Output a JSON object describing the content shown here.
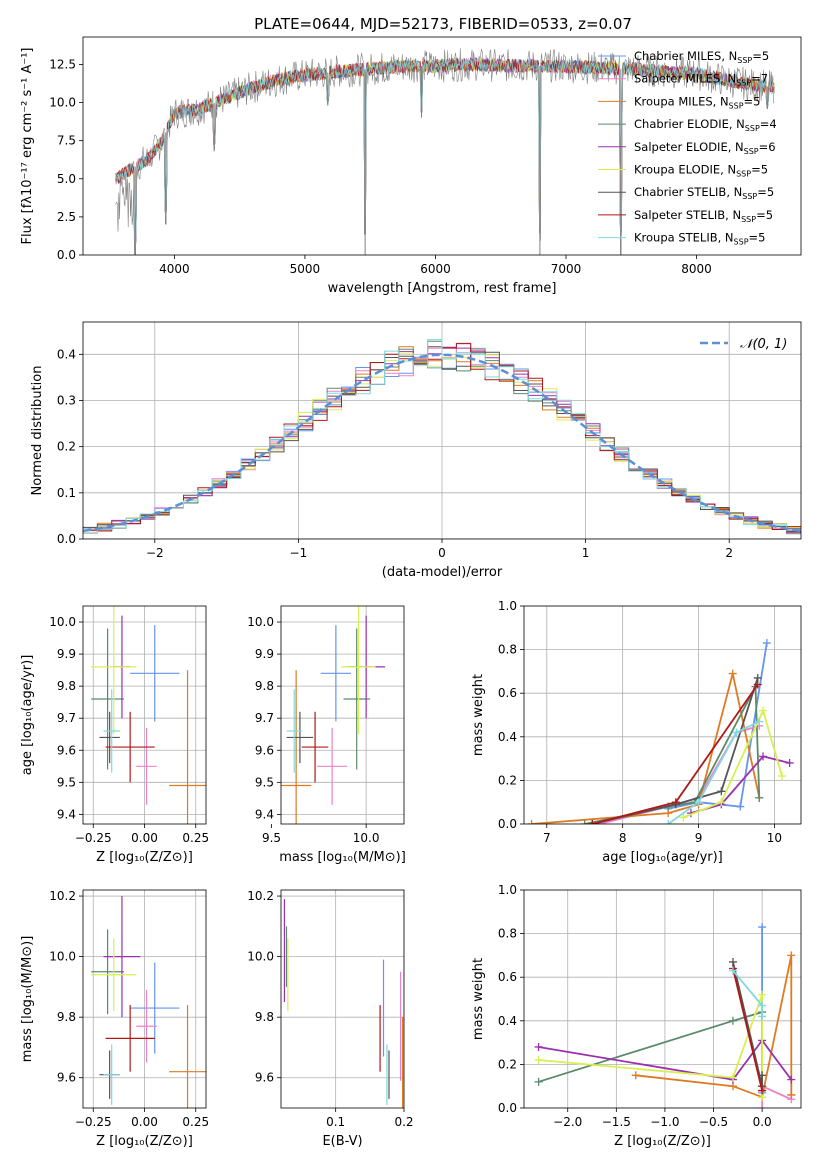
{
  "figure": {
    "title": "PLATE=0644, MJD=52173, FIBERID=0533, z=0.07"
  },
  "colors": {
    "chabrier_miles": "#6495ed",
    "salpeter_miles": "#ee82c8",
    "kroupa_miles": "#e07a20",
    "chabrier_elodie": "#5b8a6a",
    "salpeter_elodie": "#9b30b0",
    "kroupa_elodie": "#d8ef50",
    "chabrier_stelib": "#555555",
    "salpeter_stelib": "#b01818",
    "kroupa_stelib": "#80d8e0",
    "data_spectrum": "#808080",
    "normal_curve": "#5b8fd6"
  },
  "chart_data": [
    {
      "id": "spectrum",
      "type": "line",
      "xlabel": "wavelength [Angstrom, rest frame]",
      "ylabel": "Flux [fλ10⁻¹⁷ erg cm⁻² s⁻¹ A⁻¹]",
      "xlim": [
        3300,
        8800
      ],
      "ylim": [
        0,
        14.3
      ],
      "xticks": [
        "4000",
        "5000",
        "6000",
        "7000",
        "8000"
      ],
      "yticks": [
        "0.0",
        "2.5",
        "5.0",
        "7.5",
        "10.0",
        "12.5"
      ],
      "grid": false,
      "legend_position": "right",
      "legend": [
        {
          "key": "chabrier_miles",
          "label": "Chabrier MILES, N",
          "sub": "SSP",
          "suffix": "=5"
        },
        {
          "key": "salpeter_miles",
          "label": "Salpeter MILES, N",
          "sub": "SSP",
          "suffix": "=7"
        },
        {
          "key": "kroupa_miles",
          "label": "Kroupa MILES, N",
          "sub": "SSP",
          "suffix": "=5"
        },
        {
          "key": "chabrier_elodie",
          "label": "Chabrier ELODIE, N",
          "sub": "SSP",
          "suffix": "=4"
        },
        {
          "key": "salpeter_elodie",
          "label": "Salpeter ELODIE, N",
          "sub": "SSP",
          "suffix": "=6"
        },
        {
          "key": "kroupa_elodie",
          "label": "Kroupa ELODIE, N",
          "sub": "SSP",
          "suffix": "=5"
        },
        {
          "key": "chabrier_stelib",
          "label": "Chabrier STELIB, N",
          "sub": "SSP",
          "suffix": "=5"
        },
        {
          "key": "salpeter_stelib",
          "label": "Salpeter STELIB, N",
          "sub": "SSP",
          "suffix": "=5"
        },
        {
          "key": "kroupa_stelib",
          "label": "Kroupa STELIB, N",
          "sub": "SSP",
          "suffix": "=5"
        }
      ],
      "continuum": {
        "x": [
          3550,
          3700,
          3800,
          3900,
          4000,
          4200,
          4400,
          4600,
          4800,
          5000,
          5200,
          5500,
          5800,
          6000,
          6300,
          6600,
          6900,
          7200,
          7500,
          7800,
          8000,
          8200,
          8400,
          8600
        ],
        "y": [
          5.0,
          5.8,
          6.3,
          7.4,
          9.3,
          9.6,
          10.3,
          11.0,
          11.5,
          11.8,
          12.0,
          12.2,
          12.4,
          12.4,
          12.5,
          12.4,
          12.4,
          12.3,
          12.2,
          12.0,
          11.9,
          11.5,
          11.2,
          11.0
        ]
      },
      "absorption_lines": [
        {
          "x": 3700,
          "y": 0
        },
        {
          "x": 3934,
          "y": 2.0
        },
        {
          "x": 4305,
          "y": 6.8
        },
        {
          "x": 5175,
          "y": 9.8
        },
        {
          "x": 5461,
          "y": 0
        },
        {
          "x": 5893,
          "y": 9.0
        },
        {
          "x": 6800,
          "y": 0
        },
        {
          "x": 7420,
          "y": 0
        },
        {
          "x": 8542,
          "y": 9.6
        }
      ]
    },
    {
      "id": "residual-histogram",
      "type": "bar",
      "xlabel": "(data-model)/error",
      "ylabel": "Normed distribution",
      "xlim": [
        -2.5,
        2.5
      ],
      "ylim": [
        0,
        0.47
      ],
      "xticks": [
        "−2",
        "−1",
        "0",
        "1",
        "2"
      ],
      "yticks": [
        "0.0",
        "0.1",
        "0.2",
        "0.3",
        "0.4"
      ],
      "grid": true,
      "legend_position": "upper right",
      "legend": [
        {
          "key": "normal_curve",
          "label": "𝒩(0, 1)"
        }
      ],
      "bin_width": 0.1,
      "series_keys": [
        "chabrier_miles",
        "salpeter_miles",
        "kroupa_miles",
        "chabrier_elodie",
        "salpeter_elodie",
        "kroupa_elodie",
        "chabrier_stelib",
        "salpeter_stelib",
        "kroupa_stelib"
      ],
      "peak_values": [
        0.44,
        0.41,
        0.43,
        0.42,
        0.44,
        0.41,
        0.4,
        0.42,
        0.45
      ]
    },
    {
      "id": "age-vs-z",
      "type": "scatter",
      "xlabel": "Z [log₁₀(Z/Z⊙)]",
      "ylabel": "age  [log₁₀(age/yr)]",
      "xlim": [
        -0.3,
        0.3
      ],
      "ylim": [
        9.37,
        10.05
      ],
      "xticks": [
        "−0.25",
        "0.00",
        "0.25"
      ],
      "yticks": [
        "9.4",
        "9.5",
        "9.6",
        "9.7",
        "9.8",
        "9.9",
        "10.0"
      ],
      "grid": true,
      "points": [
        {
          "key": "chabrier_miles",
          "x": 0.05,
          "y": 9.84,
          "xerr": 0.12,
          "yerr": 0.15
        },
        {
          "key": "salpeter_miles",
          "x": 0.01,
          "y": 9.55,
          "xerr": 0.05,
          "yerr": 0.12
        },
        {
          "key": "kroupa_miles",
          "x": 0.21,
          "y": 9.49,
          "xerr": 0.09,
          "yerr": 0.36
        },
        {
          "key": "chabrier_elodie",
          "x": -0.18,
          "y": 9.76,
          "xerr": 0.08,
          "yerr": 0.22
        },
        {
          "key": "salpeter_elodie",
          "x": -0.11,
          "y": 9.86,
          "xerr": 0.04,
          "yerr": 0.16
        },
        {
          "key": "kroupa_elodie",
          "x": -0.15,
          "y": 9.86,
          "xerr": 0.11,
          "yerr": 0.21
        },
        {
          "key": "chabrier_stelib",
          "x": -0.17,
          "y": 9.64,
          "xerr": 0.05,
          "yerr": 0.08
        },
        {
          "key": "salpeter_stelib",
          "x": -0.07,
          "y": 9.61,
          "xerr": 0.12,
          "yerr": 0.11
        },
        {
          "key": "kroupa_stelib",
          "x": -0.16,
          "y": 9.66,
          "xerr": 0.04,
          "yerr": 0.13
        }
      ]
    },
    {
      "id": "age-vs-mass",
      "type": "scatter",
      "xlabel": "mass [log₁₀(M/M⊙)]",
      "ylabel": "",
      "xlim": [
        9.55,
        10.2
      ],
      "ylim": [
        9.37,
        10.05
      ],
      "xticks": [
        "9.5",
        "10.0"
      ],
      "yticks": [
        "9.4",
        "9.5",
        "9.6",
        "9.7",
        "9.8",
        "9.9",
        "10.0"
      ],
      "grid": true,
      "points": [
        {
          "key": "chabrier_miles",
          "x": 9.84,
          "y": 9.84,
          "xerr": 0.08,
          "yerr": 0.15
        },
        {
          "key": "salpeter_miles",
          "x": 9.82,
          "y": 9.55,
          "xerr": 0.08,
          "yerr": 0.12
        },
        {
          "key": "kroupa_miles",
          "x": 9.63,
          "y": 9.49,
          "xerr": 0.08,
          "yerr": 0.36
        },
        {
          "key": "chabrier_elodie",
          "x": 9.95,
          "y": 9.76,
          "xerr": 0.07,
          "yerr": 0.22
        },
        {
          "key": "salpeter_elodie",
          "x": 10.0,
          "y": 9.86,
          "xerr": 0.1,
          "yerr": 0.16
        },
        {
          "key": "kroupa_elodie",
          "x": 9.96,
          "y": 9.86,
          "xerr": 0.09,
          "yerr": 0.21
        },
        {
          "key": "chabrier_stelib",
          "x": 9.65,
          "y": 9.64,
          "xerr": 0.07,
          "yerr": 0.08
        },
        {
          "key": "salpeter_stelib",
          "x": 9.73,
          "y": 9.61,
          "xerr": 0.07,
          "yerr": 0.11
        },
        {
          "key": "kroupa_stelib",
          "x": 9.62,
          "y": 9.66,
          "xerr": 0.04,
          "yerr": 0.13
        }
      ]
    },
    {
      "id": "weight-vs-age",
      "type": "line",
      "xlabel": "age  [log₁₀(age/yr)]",
      "ylabel": "mass weight",
      "xlim": [
        6.7,
        10.35
      ],
      "ylim": [
        0,
        1.0
      ],
      "xticks": [
        "7",
        "8",
        "9",
        "10"
      ],
      "yticks": [
        "0.0",
        "0.2",
        "0.4",
        "0.6",
        "0.8",
        "1.0"
      ],
      "grid": true,
      "series": [
        {
          "key": "chabrier_miles",
          "x": [
            8.6,
            9.0,
            9.55,
            9.9
          ],
          "y": [
            0.07,
            0.1,
            0.08,
            0.83
          ]
        },
        {
          "key": "salpeter_miles",
          "x": [
            7.7,
            8.6,
            9.0,
            9.5,
            9.8
          ],
          "y": [
            0.0,
            0.08,
            0.12,
            0.42,
            0.45
          ]
        },
        {
          "key": "kroupa_miles",
          "x": [
            6.8,
            8.6,
            9.0,
            9.45,
            9.8
          ],
          "y": [
            0.0,
            0.05,
            0.09,
            0.69,
            0.12
          ]
        },
        {
          "key": "chabrier_elodie",
          "x": [
            7.5,
            8.6,
            8.95,
            9.75,
            9.8
          ],
          "y": [
            0.0,
            0.08,
            0.1,
            0.63,
            0.12
          ]
        },
        {
          "key": "salpeter_elodie",
          "x": [
            8.9,
            9.3,
            9.85,
            10.2
          ],
          "y": [
            0.05,
            0.09,
            0.31,
            0.28
          ]
        },
        {
          "key": "kroupa_elodie",
          "x": [
            8.8,
            9.3,
            9.85,
            10.1
          ],
          "y": [
            0.03,
            0.1,
            0.52,
            0.22
          ]
        },
        {
          "key": "chabrier_stelib",
          "x": [
            7.6,
            8.7,
            9.3,
            9.78
          ],
          "y": [
            0.0,
            0.09,
            0.15,
            0.67
          ]
        },
        {
          "key": "salpeter_stelib",
          "x": [
            7.6,
            8.7,
            9.78
          ],
          "y": [
            0.0,
            0.1,
            0.64
          ]
        },
        {
          "key": "kroupa_stelib",
          "x": [
            8.6,
            9.0,
            9.5,
            9.8
          ],
          "y": [
            0.0,
            0.1,
            0.42,
            0.47
          ]
        }
      ]
    },
    {
      "id": "mass-vs-z",
      "type": "scatter",
      "xlabel": "Z [log₁₀(Z/Z⊙)]",
      "ylabel": "mass [log₁₀(M/M⊙)]",
      "xlim": [
        -0.3,
        0.3
      ],
      "ylim": [
        9.5,
        10.22
      ],
      "xticks": [
        "−0.25",
        "0.00",
        "0.25"
      ],
      "yticks": [
        "9.6",
        "9.8",
        "10.0",
        "10.2"
      ],
      "grid": true,
      "points": [
        {
          "key": "chabrier_miles",
          "x": 0.05,
          "y": 9.83,
          "xerr": 0.12,
          "yerr": 0.15
        },
        {
          "key": "salpeter_miles",
          "x": 0.01,
          "y": 9.77,
          "xerr": 0.05,
          "yerr": 0.12
        },
        {
          "key": "kroupa_miles",
          "x": 0.21,
          "y": 9.62,
          "xerr": 0.09,
          "yerr": 0.22
        },
        {
          "key": "chabrier_elodie",
          "x": -0.18,
          "y": 9.95,
          "xerr": 0.08,
          "yerr": 0.14
        },
        {
          "key": "salpeter_elodie",
          "x": -0.11,
          "y": 10.0,
          "xerr": 0.09,
          "yerr": 0.2
        },
        {
          "key": "kroupa_elodie",
          "x": -0.15,
          "y": 9.94,
          "xerr": 0.11,
          "yerr": 0.12
        },
        {
          "key": "chabrier_stelib",
          "x": -0.17,
          "y": 9.61,
          "xerr": 0.05,
          "yerr": 0.08
        },
        {
          "key": "salpeter_stelib",
          "x": -0.07,
          "y": 9.73,
          "xerr": 0.12,
          "yerr": 0.11
        },
        {
          "key": "kroupa_stelib",
          "x": -0.16,
          "y": 9.61,
          "xerr": 0.04,
          "yerr": 0.1
        }
      ]
    },
    {
      "id": "mass-vs-ebv",
      "type": "scatter",
      "xlabel": "E(B-V)",
      "ylabel": "",
      "xlim": [
        0.02,
        0.2
      ],
      "ylim": [
        9.5,
        10.22
      ],
      "xticks": [
        "0.1",
        "0.2"
      ],
      "yticks": [
        "9.6",
        "9.8",
        "10.0",
        "10.2"
      ],
      "grid": true,
      "points": [
        {
          "key": "chabrier_miles",
          "x": 0.17,
          "y": 9.83,
          "xerr": 0.0,
          "yerr": 0.16
        },
        {
          "key": "salpeter_miles",
          "x": 0.195,
          "y": 9.77,
          "xerr": 0.0,
          "yerr": 0.18
        },
        {
          "key": "kroupa_miles",
          "x": 0.198,
          "y": 9.62,
          "xerr": 0.0,
          "yerr": 0.18
        },
        {
          "key": "chabrier_elodie",
          "x": 0.028,
          "y": 10.0,
          "xerr": 0.0,
          "yerr": 0.1
        },
        {
          "key": "salpeter_elodie",
          "x": 0.025,
          "y": 10.02,
          "xerr": 0.0,
          "yerr": 0.17
        },
        {
          "key": "kroupa_elodie",
          "x": 0.03,
          "y": 9.94,
          "xerr": 0.0,
          "yerr": 0.12
        },
        {
          "key": "chabrier_stelib",
          "x": 0.178,
          "y": 9.61,
          "xerr": 0.0,
          "yerr": 0.08
        },
        {
          "key": "salpeter_stelib",
          "x": 0.165,
          "y": 9.73,
          "xerr": 0.0,
          "yerr": 0.11
        },
        {
          "key": "kroupa_stelib",
          "x": 0.175,
          "y": 9.61,
          "xerr": 0.0,
          "yerr": 0.1
        }
      ]
    },
    {
      "id": "weight-vs-z",
      "type": "line",
      "xlabel": "Z [log₁₀(Z/Z⊙)]",
      "ylabel": "mass weight",
      "xlim": [
        -2.45,
        0.4
      ],
      "ylim": [
        0,
        1.0
      ],
      "xticks": [
        "−2.0",
        "−1.5",
        "−1.0",
        "−0.5",
        "0.0"
      ],
      "yticks": [
        "0.0",
        "0.2",
        "0.4",
        "0.6",
        "0.8",
        "1.0"
      ],
      "grid": true,
      "series": [
        {
          "key": "chabrier_miles",
          "x": [
            0.0,
            0.0,
            0.0,
            0.0
          ],
          "y": [
            0.07,
            0.1,
            0.08,
            0.83
          ]
        },
        {
          "key": "salpeter_miles",
          "x": [
            0.0,
            0.0,
            0.3,
            0.3
          ],
          "y": [
            0.0,
            0.1,
            0.04,
            0.06
          ]
        },
        {
          "key": "kroupa_miles",
          "x": [
            -1.3,
            -0.3,
            0.0,
            0.3,
            0.3
          ],
          "y": [
            0.15,
            0.1,
            0.05,
            0.7,
            0.06
          ]
        },
        {
          "key": "chabrier_elodie",
          "x": [
            -2.3,
            -0.3,
            0.0,
            0.0
          ],
          "y": [
            0.12,
            0.4,
            0.44,
            0.1
          ]
        },
        {
          "key": "salpeter_elodie",
          "x": [
            -2.3,
            -0.3,
            0.0,
            0.3
          ],
          "y": [
            0.28,
            0.13,
            0.31,
            0.13
          ]
        },
        {
          "key": "kroupa_elodie",
          "x": [
            -2.3,
            -0.3,
            0.0,
            0.0
          ],
          "y": [
            0.22,
            0.14,
            0.52,
            0.05
          ]
        },
        {
          "key": "chabrier_stelib",
          "x": [
            -0.3,
            0.0,
            0.0
          ],
          "y": [
            0.67,
            0.1,
            0.15
          ]
        },
        {
          "key": "salpeter_stelib",
          "x": [
            -0.3,
            0.0
          ],
          "y": [
            0.64,
            0.08
          ]
        },
        {
          "key": "kroupa_stelib",
          "x": [
            -0.3,
            0.0,
            0.0
          ],
          "y": [
            0.63,
            0.47,
            0.42
          ]
        }
      ]
    }
  ]
}
